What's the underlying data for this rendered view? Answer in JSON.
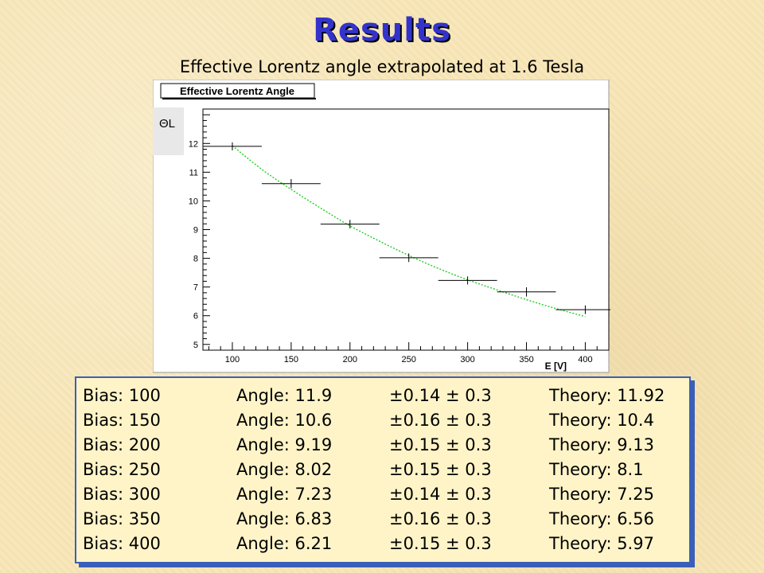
{
  "slide": {
    "title": "Results",
    "subtitle": "Effective Lorentz angle extrapolated at 1.6 Tesla"
  },
  "chart_data": {
    "type": "scatter",
    "title": "Effective Lorentz Angle",
    "xlabel": "E [V]",
    "ylabel": "ΘL",
    "xlim": [
      75,
      420
    ],
    "ylim": [
      4.8,
      13.2
    ],
    "grid": false,
    "x_ticks": [
      100,
      150,
      200,
      250,
      300,
      350,
      400
    ],
    "y_ticks": [
      5,
      6,
      7,
      8,
      9,
      10,
      11,
      12
    ],
    "series": [
      {
        "x": [
          100,
          150,
          200,
          250,
          300,
          350,
          400
        ],
        "y": [
          11.9,
          10.6,
          9.19,
          8.02,
          7.23,
          6.83,
          6.21
        ],
        "x_err": 25,
        "y_err": [
          0.14,
          0.16,
          0.15,
          0.15,
          0.14,
          0.16,
          0.15
        ]
      }
    ],
    "fit_curve": {
      "color": "#22cc22",
      "style": "dotted",
      "x": [
        100,
        125,
        150,
        175,
        200,
        225,
        250,
        275,
        300,
        325,
        350,
        375,
        400
      ],
      "y": [
        11.92,
        11.1,
        10.4,
        9.75,
        9.13,
        8.6,
        8.1,
        7.65,
        7.25,
        6.9,
        6.56,
        6.25,
        5.97
      ]
    }
  },
  "results": {
    "rows": [
      {
        "bias": "Bias: 100",
        "angle": "Angle: 11.9",
        "err": "±0.14 ± 0.3",
        "theory": "Theory: 11.92"
      },
      {
        "bias": "Bias: 150",
        "angle": "Angle: 10.6",
        "err": "±0.16 ± 0.3",
        "theory": "Theory: 10.4"
      },
      {
        "bias": "Bias: 200",
        "angle": "Angle: 9.19",
        "err": "±0.15 ± 0.3",
        "theory": "Theory: 9.13"
      },
      {
        "bias": "Bias: 250",
        "angle": "Angle: 8.02",
        "err": "±0.15 ± 0.3",
        "theory": "Theory: 8.1"
      },
      {
        "bias": "Bias: 300",
        "angle": "Angle: 7.23",
        "err": "±0.14 ± 0.3",
        "theory": "Theory: 7.25"
      },
      {
        "bias": "Bias: 350",
        "angle": "Angle: 6.83",
        "err": "±0.16 ± 0.3",
        "theory": "Theory: 6.56"
      },
      {
        "bias": "Bias: 400",
        "angle": "Angle: 6.21",
        "err": "±0.15 ± 0.3",
        "theory": "Theory: 5.97"
      }
    ]
  }
}
